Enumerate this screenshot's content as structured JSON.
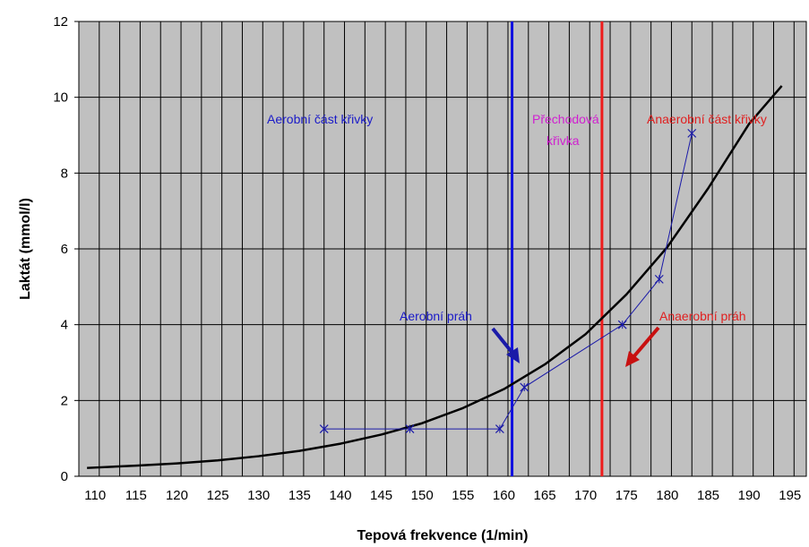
{
  "chart_data": {
    "type": "line",
    "xlabel": "Tepová frekvence (1/min)",
    "ylabel": "Laktát (mmol/l)",
    "xlim": [
      108,
      197
    ],
    "ylim": [
      0,
      12
    ],
    "x_ticks": [
      110,
      115,
      120,
      125,
      130,
      135,
      140,
      145,
      150,
      155,
      160,
      165,
      170,
      175,
      180,
      185,
      190,
      195
    ],
    "y_ticks": [
      0,
      2,
      4,
      6,
      8,
      10,
      12
    ],
    "x_gridlines": [
      108,
      110.5,
      113,
      115.5,
      118,
      120.5,
      123,
      125.5,
      128,
      130.5,
      133,
      135.5,
      138,
      140.5,
      143,
      145.5,
      148,
      150.5,
      153,
      155.5,
      158,
      160.5,
      163,
      165.5,
      168,
      170.5,
      173,
      175.5,
      178,
      180.5,
      183,
      185.5,
      188,
      190.5,
      193,
      195.5
    ],
    "y_gridlines": [
      0,
      2,
      4,
      6,
      8,
      10,
      12
    ],
    "grid": true,
    "plot_background": "#c0c0c0",
    "series": [
      {
        "kind": "curve",
        "color": "#000000",
        "x": [
          109,
          115,
          120,
          125,
          130,
          135,
          140,
          145,
          150,
          155,
          160,
          165,
          170,
          175,
          180,
          185,
          190,
          194
        ],
        "y": [
          0.22,
          0.28,
          0.34,
          0.42,
          0.53,
          0.67,
          0.86,
          1.1,
          1.4,
          1.8,
          2.3,
          2.95,
          3.75,
          4.8,
          6.05,
          7.6,
          9.3,
          10.3
        ]
      },
      {
        "kind": "measured",
        "color": "#1a1aa8",
        "marker": "x",
        "x": [
          138,
          148.5,
          159.5,
          162.5,
          174.5,
          179,
          183
        ],
        "y": [
          1.25,
          1.25,
          1.25,
          2.35,
          4.0,
          5.2,
          9.05
        ]
      }
    ],
    "vertical_lines": [
      {
        "x": 161,
        "color": "#1010e0"
      },
      {
        "x": 172,
        "color": "#ee1c1c"
      }
    ],
    "annotations": [
      {
        "text": "Aerobní část křivky",
        "color": "#1a1ac8"
      },
      {
        "text": "Přechodová",
        "color": "#d020d0"
      },
      {
        "text": "křivka",
        "color": "#d020d0"
      },
      {
        "text": "Anaerobní část křivky",
        "color": "#e02020"
      },
      {
        "text": "Aerobní práh",
        "color": "#1a1ac8"
      },
      {
        "text": "Anaerobní práh",
        "color": "#e02020"
      }
    ]
  }
}
